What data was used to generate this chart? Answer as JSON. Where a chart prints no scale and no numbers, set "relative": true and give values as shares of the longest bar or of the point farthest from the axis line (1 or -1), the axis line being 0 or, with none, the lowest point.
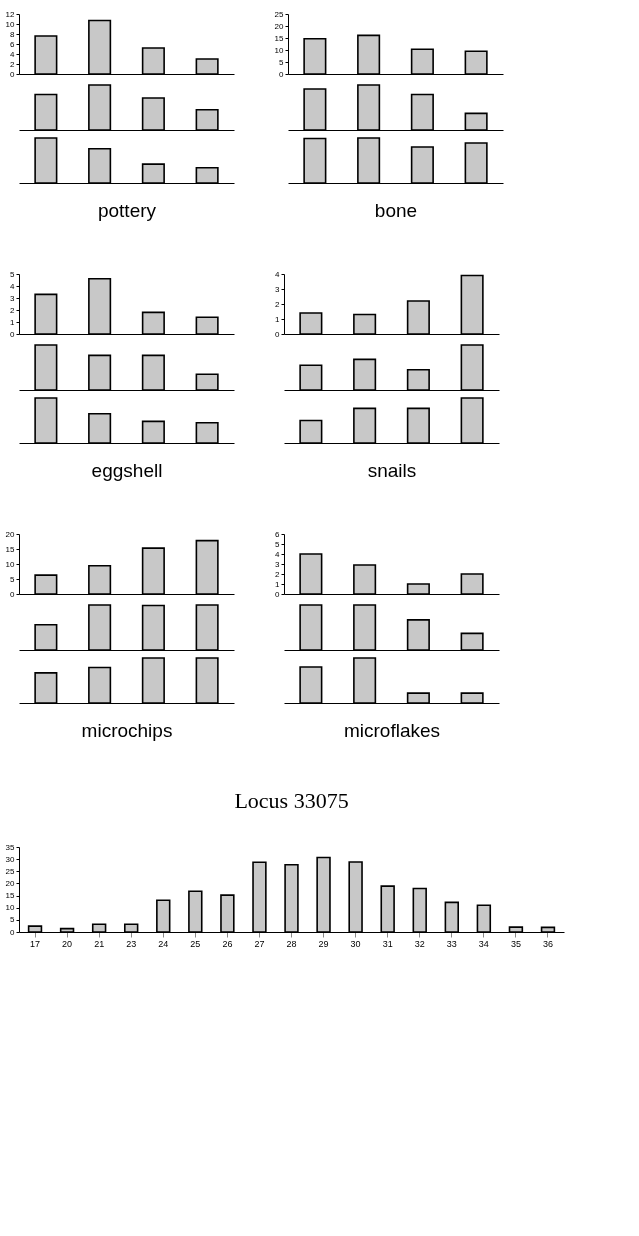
{
  "chart_data": [
    {
      "type": "bar",
      "categories": [
        null,
        null,
        null,
        null
      ],
      "values": [
        7.6,
        10.7,
        5.2,
        3.0
      ],
      "color": "#c8c8c8",
      "ylim": [
        0,
        12
      ],
      "yticks": [
        0,
        2,
        4,
        6,
        8,
        10,
        12
      ]
    },
    {
      "type": "bar",
      "categories": [
        null,
        null,
        null,
        null
      ],
      "values": [
        0.79,
        1,
        0.71,
        0.45
      ],
      "color": "#c8c8c8",
      "relative": true
    },
    {
      "type": "bar",
      "categories": [
        null,
        null,
        null,
        null
      ],
      "values": [
        1,
        0.76,
        0.42,
        0.34
      ],
      "color": "#c8c8c8",
      "relative": true,
      "xlabel": "pottery"
    },
    {
      "type": "bar",
      "categories": [
        null,
        null,
        null,
        null
      ],
      "values": [
        14.7,
        16.1,
        10.3,
        9.5
      ],
      "color": "#c8c8c8",
      "ylim": [
        0,
        25
      ],
      "yticks": [
        0,
        5,
        10,
        15,
        20,
        25
      ]
    },
    {
      "type": "bar",
      "categories": [
        null,
        null,
        null,
        null
      ],
      "values": [
        0.91,
        1,
        0.79,
        0.37
      ],
      "color": "#c8c8c8",
      "relative": true
    },
    {
      "type": "bar",
      "categories": [
        null,
        null,
        null,
        null
      ],
      "values": [
        0.99,
        1,
        0.8,
        0.89
      ],
      "color": "#c8c8c8",
      "relative": true,
      "xlabel": "bone"
    },
    {
      "type": "bar",
      "categories": [
        null,
        null,
        null,
        null
      ],
      "values": [
        3.3,
        4.6,
        1.8,
        1.4
      ],
      "color": "#c8c8c8",
      "ylim": [
        0,
        5
      ],
      "yticks": [
        0,
        1,
        2,
        3,
        4,
        5
      ]
    },
    {
      "type": "bar",
      "categories": [
        null,
        null,
        null,
        null
      ],
      "values": [
        1,
        0.77,
        0.77,
        0.35
      ],
      "color": "#c8c8c8",
      "relative": true
    },
    {
      "type": "bar",
      "categories": [
        null,
        null,
        null,
        null
      ],
      "values": [
        1,
        0.65,
        0.48,
        0.45
      ],
      "color": "#c8c8c8",
      "relative": true,
      "xlabel": "eggshell"
    },
    {
      "type": "bar",
      "categories": [
        null,
        null,
        null,
        null
      ],
      "values": [
        1.4,
        1.3,
        2.2,
        3.9
      ],
      "color": "#c8c8c8",
      "ylim": [
        0,
        4
      ],
      "yticks": [
        0,
        1,
        2,
        3,
        4
      ]
    },
    {
      "type": "bar",
      "categories": [
        null,
        null,
        null,
        null
      ],
      "values": [
        0.55,
        0.68,
        0.45,
        1
      ],
      "color": "#c8c8c8",
      "relative": true
    },
    {
      "type": "bar",
      "categories": [
        null,
        null,
        null,
        null
      ],
      "values": [
        0.5,
        0.77,
        0.77,
        1
      ],
      "color": "#c8c8c8",
      "relative": true,
      "xlabel": "snails"
    },
    {
      "type": "bar",
      "categories": [
        null,
        null,
        null,
        null
      ],
      "values": [
        6.3,
        9.4,
        15.3,
        17.8
      ],
      "color": "#c8c8c8",
      "ylim": [
        0,
        20
      ],
      "yticks": [
        0,
        5,
        10,
        15,
        20
      ]
    },
    {
      "type": "bar",
      "categories": [
        null,
        null,
        null,
        null
      ],
      "values": [
        0.56,
        1,
        0.99,
        1
      ],
      "color": "#c8c8c8",
      "relative": true
    },
    {
      "type": "bar",
      "categories": [
        null,
        null,
        null,
        null
      ],
      "values": [
        0.67,
        0.79,
        1,
        1
      ],
      "color": "#c8c8c8",
      "relative": true,
      "xlabel": "microchips"
    },
    {
      "type": "bar",
      "categories": [
        null,
        null,
        null,
        null
      ],
      "values": [
        4.0,
        2.9,
        1.0,
        2.0
      ],
      "color": "#c8c8c8",
      "ylim": [
        0,
        6
      ],
      "yticks": [
        0,
        1,
        2,
        3,
        4,
        5,
        6
      ]
    },
    {
      "type": "bar",
      "categories": [
        null,
        null,
        null,
        null
      ],
      "values": [
        1,
        1,
        0.67,
        0.37
      ],
      "color": "#c8c8c8",
      "relative": true
    },
    {
      "type": "bar",
      "categories": [
        null,
        null,
        null,
        null
      ],
      "values": [
        0.8,
        1,
        0.22,
        0.22
      ],
      "color": "#c8c8c8",
      "relative": true,
      "xlabel": "microflakes"
    },
    {
      "type": "bar",
      "title": "Locus 33075",
      "categories": [
        "17",
        "20",
        "21",
        "23",
        "24",
        "25",
        "26",
        "27",
        "28",
        "29",
        "30",
        "31",
        "32",
        "33",
        "34",
        "35",
        "36"
      ],
      "values": [
        2.4,
        1.4,
        3.2,
        3.2,
        13.1,
        16.8,
        15.2,
        28.7,
        27.7,
        30.7,
        28.8,
        18.9,
        17.9,
        12.2,
        11.0,
        2.0,
        1.9
      ],
      "color": "#c8c8c8",
      "ylim": [
        0,
        35
      ],
      "yticks": [
        0,
        5,
        10,
        15,
        20,
        25,
        30,
        35
      ]
    }
  ]
}
